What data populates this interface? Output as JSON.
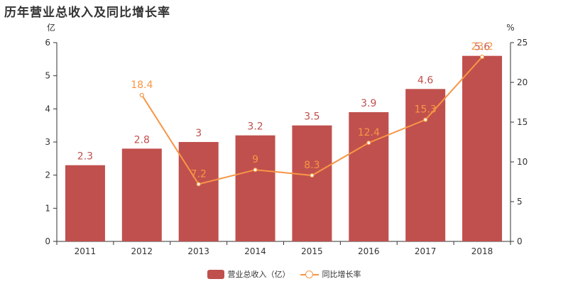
{
  "title": "历年营业总收入及同比增长率",
  "chart_data": {
    "type": "bar",
    "title": "历年营业总收入及同比增长率",
    "categories": [
      "2011",
      "2012",
      "2013",
      "2014",
      "2015",
      "2016",
      "2017",
      "2018"
    ],
    "series": [
      {
        "name": "营业总收入（亿）",
        "type": "bar",
        "axis": "left",
        "values": [
          2.3,
          2.8,
          3,
          3.2,
          3.5,
          3.9,
          4.6,
          5.6
        ]
      },
      {
        "name": "同比增长率",
        "type": "line",
        "axis": "right",
        "values": [
          null,
          18.4,
          7.2,
          9,
          8.3,
          12.4,
          15.3,
          23.2
        ]
      }
    ],
    "y_left": {
      "unit": "亿",
      "min": 0,
      "max": 6,
      "ticks": [
        0,
        1,
        2,
        3,
        4,
        5,
        6
      ]
    },
    "y_right": {
      "unit": "%",
      "min": 0,
      "max": 25,
      "ticks": [
        0,
        5,
        10,
        15,
        20,
        25
      ]
    },
    "legend_position": "bottom-center",
    "grid": false,
    "colors": {
      "bar": "#c0504d",
      "bar_label": "#c0504d",
      "line": "#f79646",
      "line_label": "#f79646"
    }
  },
  "legend": {
    "bar_label": "营业总收入（亿）",
    "line_label": "同比增长率"
  }
}
